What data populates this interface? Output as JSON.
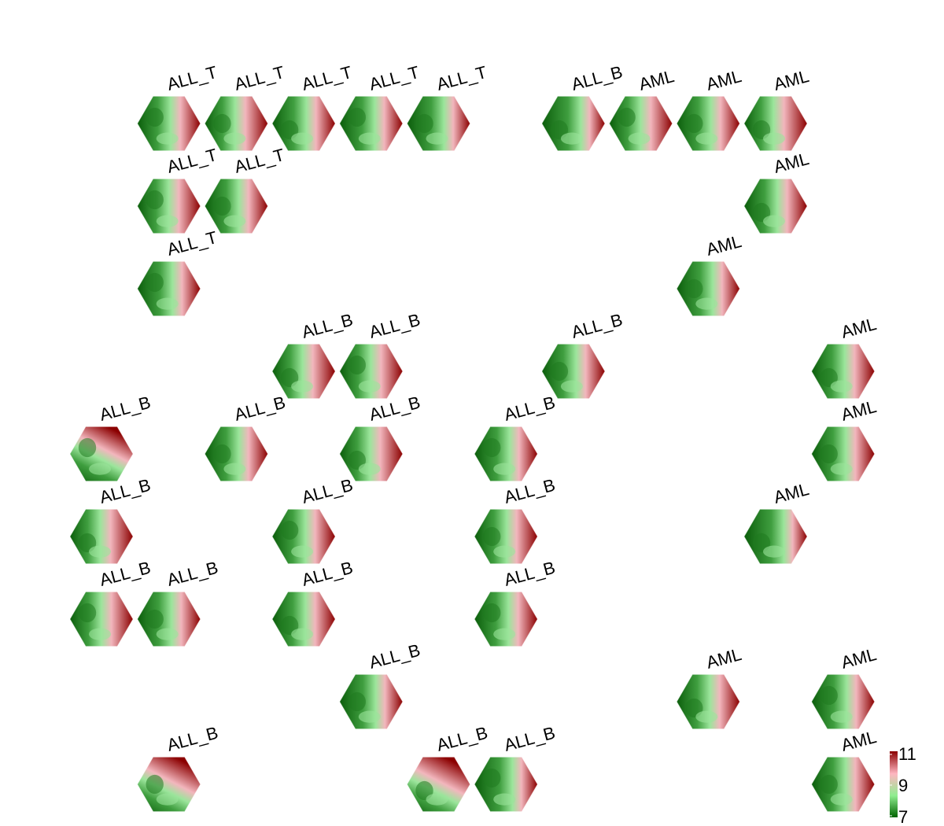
{
  "chart_data": {
    "type": "heatmap",
    "title": "",
    "colorbar": {
      "min": 7,
      "max": 11,
      "ticks": [
        11,
        9,
        7
      ],
      "colors": [
        "#006400",
        "#90EE90",
        "#FFB6C1",
        "#8B0000"
      ]
    },
    "grid_note": "hexagonal self-organizing map; each occupied cell shows a mini hexagon map of values (range 7–11) with its class label",
    "cells": [
      {
        "col": 1,
        "row": 0,
        "label": "ALL_T",
        "hot": "right",
        "split": 0.25
      },
      {
        "col": 2,
        "row": 0,
        "label": "ALL_T",
        "hot": "right",
        "split": 0.1
      },
      {
        "col": 3,
        "row": 0,
        "label": "ALL_T",
        "hot": "right",
        "split": 0.3
      },
      {
        "col": 4,
        "row": 0,
        "label": "ALL_T",
        "hot": "right",
        "split": 0.35
      },
      {
        "col": 5,
        "row": 0,
        "label": "ALL_T",
        "hot": "right",
        "split": 0.45
      },
      {
        "col": 7,
        "row": 0,
        "label": "ALL_B",
        "hot": "right",
        "split": 0.55
      },
      {
        "col": 8,
        "row": 0,
        "label": "AML",
        "hot": "right",
        "split": 0.15
      },
      {
        "col": 9,
        "row": 0,
        "label": "AML",
        "hot": "right",
        "split": 0.3
      },
      {
        "col": 10,
        "row": 0,
        "label": "AML",
        "hot": "right",
        "split": 0.05
      },
      {
        "col": 1,
        "row": 1,
        "label": "ALL_T",
        "hot": "right",
        "split": 0.15
      },
      {
        "col": 2,
        "row": 1,
        "label": "ALL_T",
        "hot": "right",
        "split": 0.3
      },
      {
        "col": 10,
        "row": 1,
        "label": "AML",
        "hot": "right",
        "split": 0.25
      },
      {
        "col": 1,
        "row": 2,
        "label": "ALL_T",
        "hot": "right",
        "split": 0.35
      },
      {
        "col": 9,
        "row": 2,
        "label": "AML",
        "hot": "right",
        "split": 0.4
      },
      {
        "col": 3,
        "row": 3,
        "label": "ALL_B",
        "hot": "right",
        "split": 0.1
      },
      {
        "col": 4,
        "row": 3,
        "label": "ALL_B",
        "hot": "right",
        "split": 0.15
      },
      {
        "col": 7,
        "row": 3,
        "label": "ALL_B",
        "hot": "right",
        "split": 0.3
      },
      {
        "col": 11,
        "row": 3,
        "label": "AML",
        "hot": "right",
        "split": 0.25
      },
      {
        "col": 0,
        "row": 4,
        "label": "ALL_B",
        "hot": "top",
        "split": 0.2
      },
      {
        "col": 2,
        "row": 4,
        "label": "ALL_B",
        "hot": "right",
        "split": 0.3
      },
      {
        "col": 4,
        "row": 4,
        "label": "ALL_B",
        "hot": "right",
        "split": 0.1
      },
      {
        "col": 6,
        "row": 4,
        "label": "ALL_B",
        "hot": "right",
        "split": 0.35
      },
      {
        "col": 11,
        "row": 4,
        "label": "AML",
        "hot": "right",
        "split": 0.3
      },
      {
        "col": 0,
        "row": 5,
        "label": "ALL_B",
        "hot": "right",
        "split": 0.1
      },
      {
        "col": 3,
        "row": 5,
        "label": "ALL_B",
        "hot": "right",
        "split": 0.25
      },
      {
        "col": 6,
        "row": 5,
        "label": "ALL_B",
        "hot": "right",
        "split": 0.2
      },
      {
        "col": 10,
        "row": 5,
        "label": "AML",
        "hot": "right",
        "split": 0.6
      },
      {
        "col": 0,
        "row": 6,
        "label": "ALL_B",
        "hot": "right",
        "split": 0.15
      },
      {
        "col": 1,
        "row": 6,
        "label": "ALL_B",
        "hot": "right",
        "split": 0.3
      },
      {
        "col": 3,
        "row": 6,
        "label": "ALL_B",
        "hot": "right",
        "split": 0.25
      },
      {
        "col": 6,
        "row": 6,
        "label": "ALL_B",
        "hot": "right",
        "split": 0.3
      },
      {
        "col": 4,
        "row": 7,
        "label": "ALL_B",
        "hot": "right",
        "split": 0.4
      },
      {
        "col": 9,
        "row": 7,
        "label": "AML",
        "hot": "right",
        "split": 0.25
      },
      {
        "col": 11,
        "row": 7,
        "label": "AML",
        "hot": "right",
        "split": 0.35
      },
      {
        "col": 1,
        "row": 8,
        "label": "ALL_B",
        "hot": "top",
        "split": 0.1
      },
      {
        "col": 5,
        "row": 8,
        "label": "ALL_B",
        "hot": "top",
        "split": 0.05
      },
      {
        "col": 6,
        "row": 8,
        "label": "ALL_B",
        "hot": "right",
        "split": 0.5
      },
      {
        "col": 11,
        "row": 8,
        "label": "AML",
        "hot": "right",
        "split": 0.3
      }
    ]
  }
}
